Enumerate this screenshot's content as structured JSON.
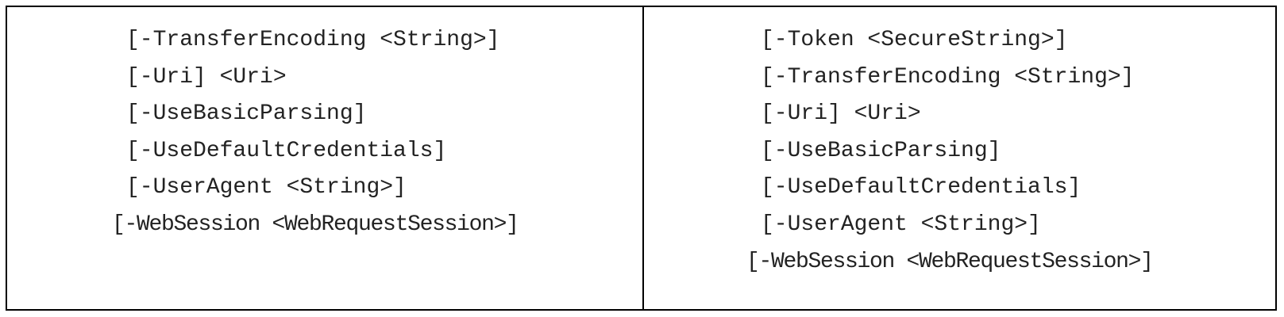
{
  "left_column": {
    "lines": [
      "[-TransferEncoding <String>]",
      "[-Uri] <Uri>",
      "[-UseBasicParsing]",
      "[-UseDefaultCredentials]",
      "[-UserAgent <String>]",
      "[-WebSession <WebRequestSession>]"
    ]
  },
  "right_column": {
    "lines": [
      "[-Token <SecureString>]",
      "[-TransferEncoding <String>]",
      "[-Uri] <Uri>",
      "[-UseBasicParsing]",
      "[-UseDefaultCredentials]",
      "[-UserAgent <String>]",
      "[-WebSession <WebRequestSession>]"
    ]
  }
}
